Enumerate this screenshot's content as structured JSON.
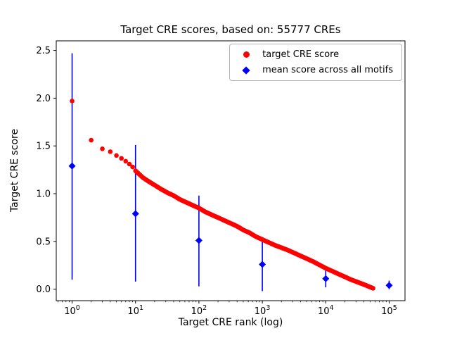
{
  "title": "Target CRE scores, based on: 55777 CREs",
  "chart_data": {
    "type": "scatter",
    "title": "Target CRE scores, based on: 55777 CREs",
    "xlabel": "Target CRE rank (log)",
    "ylabel": "Target CRE score",
    "x_scale": "log10",
    "xlim_log10": [
      -0.25,
      5.25
    ],
    "ylim": [
      -0.12,
      2.6
    ],
    "x_ticks": [
      1,
      10,
      100,
      1000,
      10000,
      100000
    ],
    "x_tick_exponents": [
      0,
      1,
      2,
      3,
      4,
      5
    ],
    "y_ticks": [
      0.0,
      0.5,
      1.0,
      1.5,
      2.0,
      2.5
    ],
    "grid": false,
    "legend_position": "upper right",
    "n_points": 55777,
    "series": [
      {
        "name": "target CRE score",
        "type": "scatter",
        "marker": "circle",
        "color": "#ff0000",
        "note": "dense monotonically decreasing curve of 55777 ranked points; anchor samples [rank, score] below",
        "anchors": [
          [
            1,
            1.97
          ],
          [
            2,
            1.56
          ],
          [
            3,
            1.47
          ],
          [
            4,
            1.44
          ],
          [
            5,
            1.4
          ],
          [
            6,
            1.37
          ],
          [
            7,
            1.34
          ],
          [
            8,
            1.31
          ],
          [
            9,
            1.28
          ],
          [
            10,
            1.24
          ],
          [
            13,
            1.17
          ],
          [
            16,
            1.13
          ],
          [
            20,
            1.09
          ],
          [
            25,
            1.05
          ],
          [
            32,
            1.01
          ],
          [
            40,
            0.98
          ],
          [
            50,
            0.94
          ],
          [
            63,
            0.91
          ],
          [
            79,
            0.88
          ],
          [
            100,
            0.85
          ],
          [
            126,
            0.81
          ],
          [
            158,
            0.78
          ],
          [
            200,
            0.75
          ],
          [
            251,
            0.72
          ],
          [
            316,
            0.69
          ],
          [
            398,
            0.66
          ],
          [
            501,
            0.62
          ],
          [
            631,
            0.59
          ],
          [
            794,
            0.55
          ],
          [
            1000,
            0.52
          ],
          [
            1585,
            0.46
          ],
          [
            2512,
            0.41
          ],
          [
            3981,
            0.35
          ],
          [
            6310,
            0.29
          ],
          [
            10000,
            0.22
          ],
          [
            15849,
            0.16
          ],
          [
            25119,
            0.1
          ],
          [
            39811,
            0.05
          ],
          [
            55777,
            0.01
          ]
        ]
      },
      {
        "name": "mean score across all motifs",
        "type": "errorbar",
        "marker": "diamond",
        "color": "#0000ff",
        "points": [
          {
            "x": 1,
            "y": 1.29,
            "ylo": 0.1,
            "yhi": 2.47
          },
          {
            "x": 10,
            "y": 0.79,
            "ylo": 0.08,
            "yhi": 1.51
          },
          {
            "x": 100,
            "y": 0.51,
            "ylo": 0.03,
            "yhi": 0.98
          },
          {
            "x": 1000,
            "y": 0.26,
            "ylo": -0.02,
            "yhi": 0.53
          },
          {
            "x": 10000,
            "y": 0.11,
            "ylo": 0.02,
            "yhi": 0.24
          },
          {
            "x": 100000,
            "y": 0.04,
            "ylo": 0.0,
            "yhi": 0.09
          }
        ]
      }
    ]
  },
  "colors": {
    "red": "#ff0000",
    "blue": "#0000ff",
    "axis": "#000000",
    "legend_border": "#b3b3b3",
    "background": "#ffffff"
  }
}
